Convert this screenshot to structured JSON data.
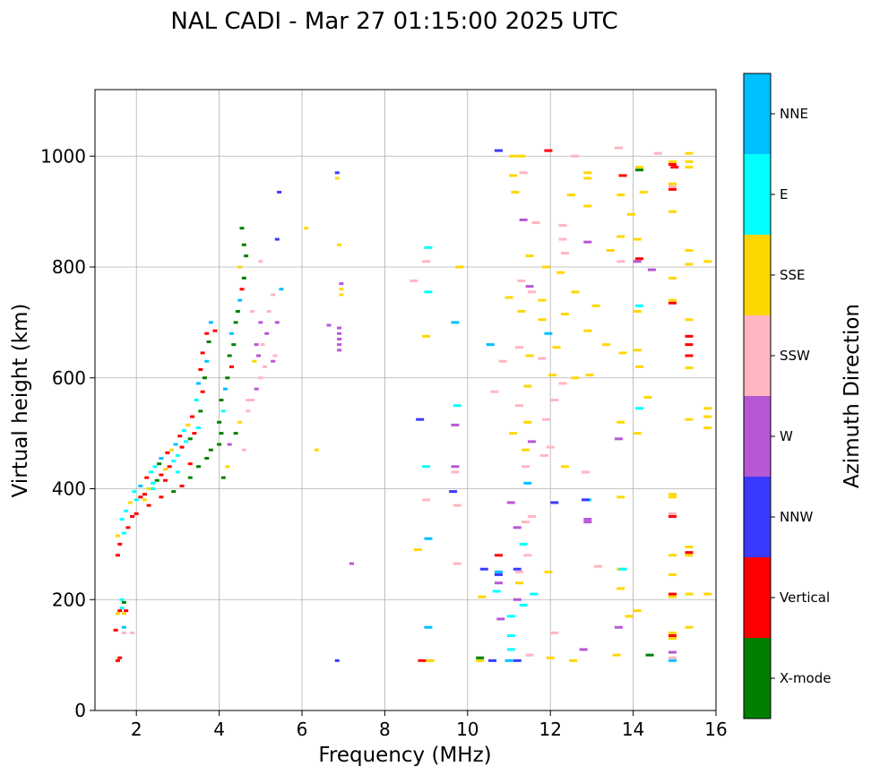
{
  "chart_data": {
    "type": "scatter",
    "title": "NAL CADI - Mar 27 01:15:00 2025 UTC",
    "xlabel": "Frequency (MHz)",
    "ylabel": "Virtual height (km)",
    "xlim": [
      1,
      16
    ],
    "ylim": [
      0,
      1120
    ],
    "xticks": [
      2,
      4,
      6,
      8,
      10,
      12,
      14,
      16
    ],
    "yticks": [
      0,
      200,
      400,
      600,
      800,
      1000
    ],
    "grid": true,
    "colorbar": {
      "label": "Azimuth Direction",
      "categories": [
        "X-mode",
        "Vertical",
        "NNW",
        "W",
        "SSW",
        "SSE",
        "E",
        "NNE"
      ],
      "colors": [
        "#008000",
        "#ff0000",
        "#3a3aff",
        "#b857d6",
        "#ffb6c1",
        "#ffd700",
        "#00ffff",
        "#00bfff"
      ]
    },
    "points": [
      [
        1.55,
        90,
        1
      ],
      [
        1.6,
        95,
        1
      ],
      [
        1.5,
        145,
        1
      ],
      [
        1.7,
        140,
        4
      ],
      [
        1.9,
        140,
        4
      ],
      [
        1.55,
        175,
        5
      ],
      [
        1.6,
        180,
        1
      ],
      [
        1.7,
        175,
        5
      ],
      [
        1.75,
        180,
        1
      ],
      [
        1.65,
        185,
        6
      ],
      [
        1.7,
        195,
        0
      ],
      [
        1.65,
        200,
        6
      ],
      [
        1.7,
        150,
        7
      ],
      [
        1.55,
        280,
        1
      ],
      [
        1.6,
        300,
        1
      ],
      [
        1.55,
        315,
        5
      ],
      [
        1.7,
        320,
        6
      ],
      [
        1.8,
        330,
        1
      ],
      [
        1.65,
        345,
        6
      ],
      [
        1.9,
        350,
        1
      ],
      [
        1.75,
        360,
        6
      ],
      [
        2.0,
        355,
        1
      ],
      [
        1.85,
        375,
        5
      ],
      [
        2.0,
        380,
        6
      ],
      [
        2.1,
        385,
        1
      ],
      [
        1.95,
        395,
        6
      ],
      [
        2.2,
        390,
        1
      ],
      [
        2.1,
        405,
        7
      ],
      [
        2.3,
        400,
        5
      ],
      [
        2.4,
        410,
        6
      ],
      [
        2.25,
        420,
        1
      ],
      [
        2.5,
        415,
        0
      ],
      [
        2.35,
        430,
        6
      ],
      [
        2.6,
        425,
        1
      ],
      [
        2.45,
        440,
        6
      ],
      [
        2.7,
        435,
        5
      ],
      [
        2.55,
        445,
        0
      ],
      [
        2.8,
        440,
        1
      ],
      [
        2.6,
        455,
        7
      ],
      [
        2.9,
        450,
        6
      ],
      [
        2.75,
        465,
        1
      ],
      [
        3.0,
        460,
        6
      ],
      [
        2.85,
        470,
        5
      ],
      [
        3.1,
        475,
        1
      ],
      [
        2.95,
        480,
        7
      ],
      [
        3.2,
        485,
        6
      ],
      [
        3.05,
        495,
        1
      ],
      [
        3.3,
        490,
        0
      ],
      [
        3.15,
        505,
        6
      ],
      [
        3.4,
        500,
        1
      ],
      [
        3.25,
        515,
        5
      ],
      [
        3.5,
        510,
        6
      ],
      [
        3.35,
        530,
        1
      ],
      [
        3.55,
        540,
        0
      ],
      [
        3.45,
        560,
        6
      ],
      [
        3.6,
        575,
        1
      ],
      [
        3.5,
        590,
        7
      ],
      [
        3.65,
        600,
        0
      ],
      [
        3.55,
        615,
        1
      ],
      [
        3.7,
        630,
        7
      ],
      [
        3.6,
        645,
        1
      ],
      [
        3.75,
        665,
        0
      ],
      [
        3.7,
        680,
        1
      ],
      [
        3.8,
        700,
        7
      ],
      [
        3.9,
        685,
        1
      ],
      [
        2.3,
        370,
        1
      ],
      [
        2.6,
        385,
        1
      ],
      [
        2.9,
        395,
        0
      ],
      [
        3.1,
        405,
        1
      ],
      [
        3.3,
        420,
        0
      ],
      [
        3.5,
        440,
        0
      ],
      [
        3.7,
        455,
        0
      ],
      [
        3.8,
        470,
        0
      ],
      [
        3.3,
        445,
        1
      ],
      [
        3.0,
        430,
        6
      ],
      [
        2.7,
        415,
        1
      ],
      [
        2.4,
        400,
        6
      ],
      [
        2.2,
        380,
        5
      ],
      [
        4.0,
        480,
        0
      ],
      [
        4.05,
        500,
        0
      ],
      [
        4.0,
        520,
        0
      ],
      [
        4.1,
        540,
        6
      ],
      [
        4.05,
        560,
        0
      ],
      [
        4.15,
        580,
        7
      ],
      [
        4.2,
        600,
        0
      ],
      [
        4.3,
        620,
        1
      ],
      [
        4.25,
        640,
        0
      ],
      [
        4.35,
        660,
        0
      ],
      [
        4.3,
        680,
        7
      ],
      [
        4.4,
        700,
        0
      ],
      [
        4.45,
        720,
        0
      ],
      [
        4.5,
        740,
        7
      ],
      [
        4.55,
        760,
        1
      ],
      [
        4.6,
        780,
        0
      ],
      [
        4.5,
        800,
        5
      ],
      [
        4.65,
        820,
        0
      ],
      [
        4.6,
        840,
        0
      ],
      [
        4.55,
        870,
        0
      ],
      [
        4.1,
        420,
        0
      ],
      [
        4.2,
        440,
        5
      ],
      [
        4.25,
        480,
        3
      ],
      [
        4.4,
        500,
        0
      ],
      [
        4.5,
        520,
        5
      ],
      [
        4.6,
        470,
        4
      ],
      [
        4.7,
        540,
        4
      ],
      [
        4.8,
        560,
        4
      ],
      [
        4.9,
        580,
        3
      ],
      [
        5.0,
        600,
        4
      ],
      [
        5.1,
        620,
        4
      ],
      [
        4.95,
        640,
        3
      ],
      [
        5.05,
        660,
        4
      ],
      [
        5.15,
        680,
        3
      ],
      [
        5.0,
        700,
        3
      ],
      [
        5.2,
        720,
        4
      ],
      [
        5.3,
        750,
        4
      ],
      [
        5.4,
        700,
        3
      ],
      [
        5.5,
        760,
        7
      ],
      [
        5.4,
        850,
        2
      ],
      [
        5.45,
        935,
        2
      ],
      [
        4.85,
        630,
        5
      ],
      [
        4.7,
        560,
        4
      ],
      [
        4.9,
        660,
        3
      ],
      [
        5.3,
        630,
        3
      ],
      [
        5.35,
        640,
        4
      ],
      [
        4.8,
        720,
        4
      ],
      [
        5.0,
        810,
        4
      ],
      [
        6.1,
        870,
        5
      ],
      [
        6.35,
        470,
        5
      ],
      [
        6.65,
        695,
        3
      ],
      [
        6.9,
        690,
        3
      ],
      [
        6.9,
        680,
        3
      ],
      [
        6.9,
        670,
        3
      ],
      [
        6.9,
        660,
        3
      ],
      [
        6.9,
        650,
        3
      ],
      [
        6.95,
        760,
        5
      ],
      [
        6.95,
        750,
        5
      ],
      [
        6.95,
        770,
        3
      ],
      [
        6.9,
        840,
        5
      ],
      [
        6.85,
        960,
        5
      ],
      [
        6.85,
        970,
        2
      ],
      [
        6.85,
        90,
        2
      ],
      [
        7.2,
        265,
        3
      ],
      [
        8.7,
        775,
        4
      ],
      [
        8.8,
        290,
        5
      ],
      [
        8.85,
        525,
        2
      ],
      [
        8.9,
        90,
        1
      ],
      [
        9.05,
        310,
        7
      ],
      [
        9.0,
        440,
        6
      ],
      [
        9.0,
        675,
        5
      ],
      [
        9.05,
        150,
        7
      ],
      [
        9.1,
        90,
        5
      ],
      [
        9.05,
        755,
        6
      ],
      [
        9.05,
        835,
        6
      ],
      [
        9.0,
        380,
        4
      ],
      [
        9.0,
        810,
        4
      ],
      [
        9.65,
        395,
        2
      ],
      [
        9.7,
        440,
        3
      ],
      [
        9.7,
        430,
        4
      ],
      [
        9.7,
        515,
        3
      ],
      [
        9.75,
        550,
        6
      ],
      [
        9.7,
        700,
        7
      ],
      [
        9.75,
        370,
        4
      ],
      [
        9.75,
        265,
        4
      ],
      [
        9.8,
        800,
        5
      ],
      [
        10.3,
        90,
        5
      ],
      [
        10.3,
        95,
        0
      ],
      [
        10.35,
        205,
        5
      ],
      [
        10.4,
        255,
        2
      ],
      [
        10.55,
        660,
        7
      ],
      [
        10.6,
        90,
        2
      ],
      [
        10.65,
        575,
        4
      ],
      [
        10.7,
        215,
        6
      ],
      [
        10.75,
        250,
        7
      ],
      [
        10.75,
        245,
        2
      ],
      [
        10.8,
        165,
        3
      ],
      [
        10.75,
        230,
        3
      ],
      [
        10.75,
        1010,
        2
      ],
      [
        10.75,
        280,
        1
      ],
      [
        10.85,
        630,
        4
      ],
      [
        11.0,
        90,
        7
      ],
      [
        11.05,
        110,
        6
      ],
      [
        11.05,
        135,
        6
      ],
      [
        11.05,
        170,
        6
      ],
      [
        11.05,
        375,
        3
      ],
      [
        11.1,
        500,
        5
      ],
      [
        11.0,
        745,
        5
      ],
      [
        11.1,
        1000,
        5
      ],
      [
        11.1,
        965,
        5
      ],
      [
        11.15,
        935,
        5
      ],
      [
        11.2,
        255,
        2
      ],
      [
        11.2,
        90,
        2
      ],
      [
        11.2,
        200,
        3
      ],
      [
        11.25,
        230,
        5
      ],
      [
        11.25,
        250,
        4
      ],
      [
        11.2,
        330,
        3
      ],
      [
        11.25,
        550,
        4
      ],
      [
        11.25,
        655,
        4
      ],
      [
        11.3,
        720,
        5
      ],
      [
        11.3,
        775,
        4
      ],
      [
        11.3,
        1000,
        5
      ],
      [
        11.35,
        885,
        3
      ],
      [
        11.35,
        970,
        4
      ],
      [
        11.35,
        300,
        6
      ],
      [
        11.35,
        190,
        6
      ],
      [
        11.4,
        340,
        4
      ],
      [
        11.4,
        440,
        4
      ],
      [
        11.4,
        470,
        5
      ],
      [
        11.45,
        280,
        4
      ],
      [
        11.45,
        410,
        7
      ],
      [
        11.45,
        520,
        5
      ],
      [
        11.45,
        585,
        5
      ],
      [
        11.5,
        640,
        5
      ],
      [
        11.5,
        820,
        5
      ],
      [
        11.55,
        485,
        3
      ],
      [
        11.55,
        755,
        4
      ],
      [
        11.5,
        100,
        4
      ],
      [
        11.6,
        210,
        6
      ],
      [
        11.55,
        350,
        4
      ],
      [
        11.65,
        880,
        4
      ],
      [
        11.5,
        765,
        3
      ],
      [
        11.8,
        635,
        4
      ],
      [
        11.8,
        740,
        5
      ],
      [
        11.8,
        705,
        5
      ],
      [
        11.85,
        460,
        4
      ],
      [
        11.9,
        525,
        4
      ],
      [
        11.9,
        800,
        5
      ],
      [
        11.95,
        250,
        5
      ],
      [
        11.95,
        680,
        7
      ],
      [
        12.0,
        95,
        5
      ],
      [
        11.95,
        1010,
        1
      ],
      [
        12.0,
        475,
        4
      ],
      [
        12.05,
        605,
        5
      ],
      [
        12.1,
        140,
        4
      ],
      [
        12.1,
        375,
        2
      ],
      [
        12.1,
        560,
        4
      ],
      [
        12.15,
        655,
        5
      ],
      [
        12.25,
        790,
        5
      ],
      [
        12.3,
        875,
        4
      ],
      [
        12.35,
        825,
        4
      ],
      [
        12.35,
        715,
        5
      ],
      [
        12.3,
        850,
        4
      ],
      [
        12.35,
        440,
        5
      ],
      [
        12.3,
        590,
        4
      ],
      [
        12.55,
        90,
        5
      ],
      [
        12.5,
        930,
        5
      ],
      [
        12.6,
        755,
        5
      ],
      [
        12.6,
        1000,
        4
      ],
      [
        12.6,
        600,
        5
      ],
      [
        12.8,
        110,
        3
      ],
      [
        12.9,
        380,
        6
      ],
      [
        12.9,
        345,
        3
      ],
      [
        12.85,
        380,
        2
      ],
      [
        12.85,
        430,
        4
      ],
      [
        12.9,
        910,
        5
      ],
      [
        12.9,
        970,
        5
      ],
      [
        12.9,
        960,
        5
      ],
      [
        12.9,
        845,
        3
      ],
      [
        12.9,
        685,
        5
      ],
      [
        12.95,
        605,
        5
      ],
      [
        12.9,
        340,
        3
      ],
      [
        13.1,
        730,
        5
      ],
      [
        13.15,
        260,
        4
      ],
      [
        13.35,
        660,
        5
      ],
      [
        13.45,
        830,
        5
      ],
      [
        13.6,
        100,
        5
      ],
      [
        13.65,
        490,
        3
      ],
      [
        13.65,
        150,
        3
      ],
      [
        13.7,
        220,
        5
      ],
      [
        13.7,
        255,
        5
      ],
      [
        13.75,
        255,
        6
      ],
      [
        13.7,
        520,
        5
      ],
      [
        13.75,
        645,
        5
      ],
      [
        13.7,
        855,
        5
      ],
      [
        13.7,
        810,
        4
      ],
      [
        13.7,
        930,
        5
      ],
      [
        13.75,
        965,
        1
      ],
      [
        13.7,
        385,
        5
      ],
      [
        13.65,
        1015,
        4
      ],
      [
        13.9,
        170,
        5
      ],
      [
        13.95,
        895,
        5
      ],
      [
        14.1,
        180,
        5
      ],
      [
        14.1,
        500,
        5
      ],
      [
        14.15,
        545,
        6
      ],
      [
        14.15,
        620,
        5
      ],
      [
        14.1,
        650,
        5
      ],
      [
        14.1,
        720,
        5
      ],
      [
        14.15,
        730,
        6
      ],
      [
        14.1,
        810,
        3
      ],
      [
        14.15,
        815,
        1
      ],
      [
        14.1,
        850,
        5
      ],
      [
        14.15,
        975,
        0
      ],
      [
        14.15,
        980,
        5
      ],
      [
        14.25,
        935,
        5
      ],
      [
        14.35,
        565,
        5
      ],
      [
        14.4,
        100,
        0
      ],
      [
        14.45,
        795,
        3
      ],
      [
        14.6,
        1005,
        4
      ],
      [
        14.95,
        90,
        7
      ],
      [
        14.95,
        95,
        4
      ],
      [
        14.95,
        105,
        3
      ],
      [
        14.95,
        130,
        5
      ],
      [
        14.95,
        135,
        1
      ],
      [
        14.95,
        140,
        5
      ],
      [
        14.95,
        205,
        5
      ],
      [
        14.95,
        210,
        1
      ],
      [
        14.95,
        245,
        5
      ],
      [
        14.95,
        280,
        5
      ],
      [
        14.95,
        350,
        1
      ],
      [
        14.95,
        355,
        4
      ],
      [
        14.95,
        385,
        5
      ],
      [
        14.95,
        390,
        5
      ],
      [
        14.95,
        735,
        1
      ],
      [
        14.95,
        740,
        5
      ],
      [
        14.95,
        780,
        5
      ],
      [
        14.95,
        900,
        5
      ],
      [
        14.95,
        940,
        1
      ],
      [
        14.95,
        945,
        4
      ],
      [
        14.95,
        950,
        5
      ],
      [
        14.95,
        985,
        1
      ],
      [
        14.95,
        990,
        5
      ],
      [
        15.0,
        980,
        1
      ],
      [
        15.35,
        150,
        5
      ],
      [
        15.35,
        210,
        5
      ],
      [
        15.35,
        280,
        5
      ],
      [
        15.35,
        285,
        1
      ],
      [
        15.35,
        295,
        5
      ],
      [
        15.35,
        525,
        5
      ],
      [
        15.35,
        618,
        5
      ],
      [
        15.35,
        640,
        1
      ],
      [
        15.35,
        660,
        1
      ],
      [
        15.35,
        675,
        1
      ],
      [
        15.35,
        705,
        5
      ],
      [
        15.35,
        805,
        5
      ],
      [
        15.35,
        830,
        5
      ],
      [
        15.35,
        980,
        5
      ],
      [
        15.35,
        990,
        5
      ],
      [
        15.35,
        1005,
        5
      ],
      [
        15.8,
        210,
        5
      ],
      [
        15.8,
        510,
        5
      ],
      [
        15.8,
        530,
        5
      ],
      [
        15.8,
        545,
        5
      ],
      [
        15.8,
        810,
        5
      ]
    ]
  }
}
